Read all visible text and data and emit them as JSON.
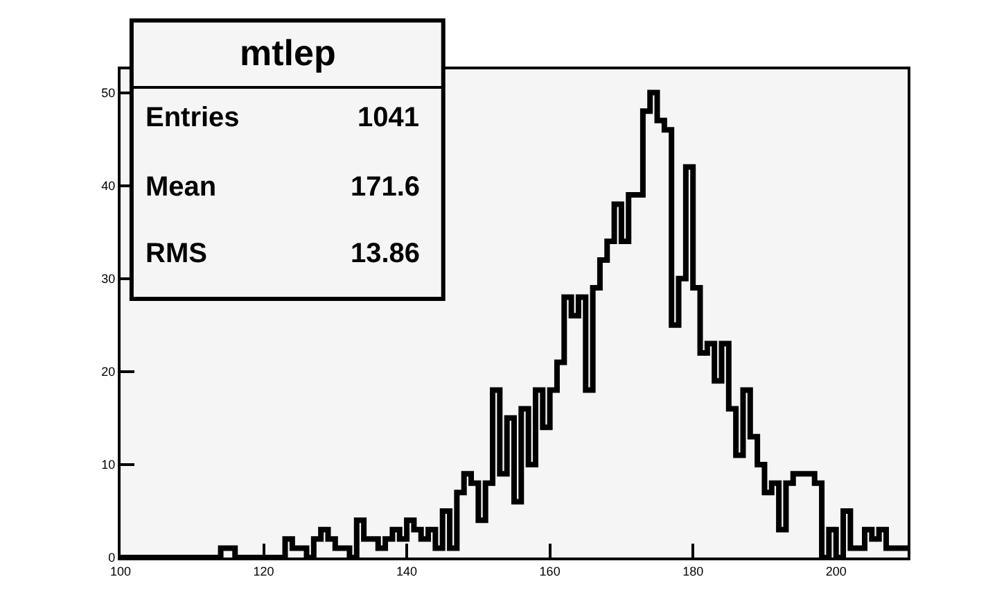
{
  "chart_data": {
    "type": "histogram",
    "title": "mtlep",
    "annotations": [
      "Entries",
      "1041",
      "Mean",
      "171.6",
      "RMS",
      "13.86"
    ],
    "bins": [
      100,
      101,
      102,
      103,
      104,
      105,
      106,
      107,
      108,
      109,
      110,
      111,
      112,
      113,
      114,
      115,
      116,
      117,
      118,
      119,
      120,
      121,
      122,
      123,
      124,
      125,
      126,
      127,
      128,
      129,
      130,
      131,
      132,
      133,
      134,
      135,
      136,
      137,
      138,
      139,
      140,
      141,
      142,
      143,
      144,
      145,
      146,
      147,
      148,
      149,
      150,
      151,
      152,
      153,
      154,
      155,
      156,
      157,
      158,
      159,
      160,
      161,
      162,
      163,
      164,
      165,
      166,
      167,
      168,
      169,
      170,
      171,
      172,
      173,
      174,
      175,
      176,
      177,
      178,
      179,
      180,
      181,
      182,
      183,
      184,
      185,
      186,
      187,
      188,
      189,
      190,
      191,
      192,
      193,
      194,
      195,
      196,
      197,
      198,
      199,
      200,
      201,
      202,
      203,
      204,
      205,
      206,
      207,
      208,
      209,
      210
    ],
    "values": [
      0,
      0,
      0,
      0,
      0,
      0,
      0,
      0,
      0,
      0,
      0,
      0,
      0,
      0,
      1,
      1,
      0,
      0,
      0,
      0,
      0,
      0,
      0,
      2,
      1,
      1,
      0,
      2,
      3,
      2,
      1,
      1,
      0,
      4,
      2,
      2,
      1,
      2,
      3,
      2,
      4,
      3,
      2,
      3,
      1,
      5,
      1,
      7,
      9,
      8,
      4,
      8,
      18,
      9,
      15,
      6,
      16,
      10,
      18,
      14,
      18,
      21,
      28,
      26,
      28,
      18,
      29,
      32,
      34,
      38,
      34,
      39,
      39,
      48,
      50,
      47,
      46,
      25,
      30,
      42,
      29,
      22,
      23,
      19,
      23,
      16,
      11,
      18,
      13,
      10,
      7,
      8,
      3,
      8,
      9,
      9,
      9,
      8,
      0,
      3,
      0,
      5,
      1,
      1,
      3,
      2,
      3,
      1,
      1,
      1
    ],
    "color": "#000000",
    "xlim": [
      100,
      210
    ],
    "xticks": [
      100,
      120,
      140,
      160,
      180,
      200
    ],
    "ylim": [
      0,
      52.5
    ],
    "yticks": [
      0,
      10,
      20,
      30,
      40,
      50
    ],
    "grid": false
  }
}
